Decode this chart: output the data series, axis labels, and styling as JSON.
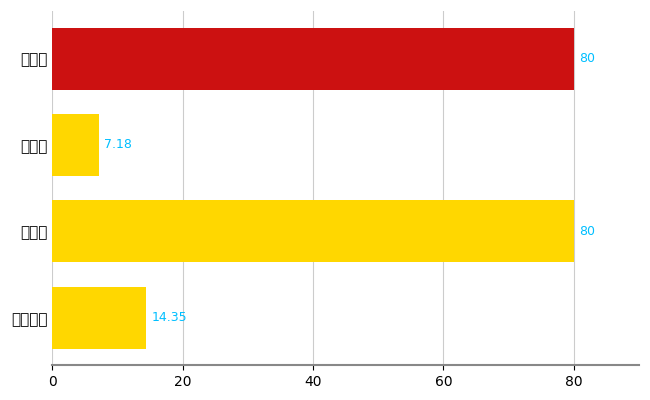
{
  "categories": [
    "全国平均",
    "県最大",
    "県平均",
    "長野市"
  ],
  "values": [
    14.35,
    80,
    7.18,
    80
  ],
  "bar_colors": [
    "#FFD700",
    "#FFD700",
    "#FFD700",
    "#CC1111"
  ],
  "value_labels": [
    "14.35",
    "80",
    "7.18",
    "80"
  ],
  "xlim": [
    0,
    90
  ],
  "xticks": [
    0,
    20,
    40,
    60,
    80
  ],
  "grid_color": "#cccccc",
  "background_color": "#ffffff",
  "label_color": "#00BFFF",
  "bar_height": 0.72,
  "figsize": [
    6.5,
    4.0
  ],
  "dpi": 100,
  "ytick_fontsize": 11,
  "xtick_fontsize": 10,
  "label_fontsize": 9
}
